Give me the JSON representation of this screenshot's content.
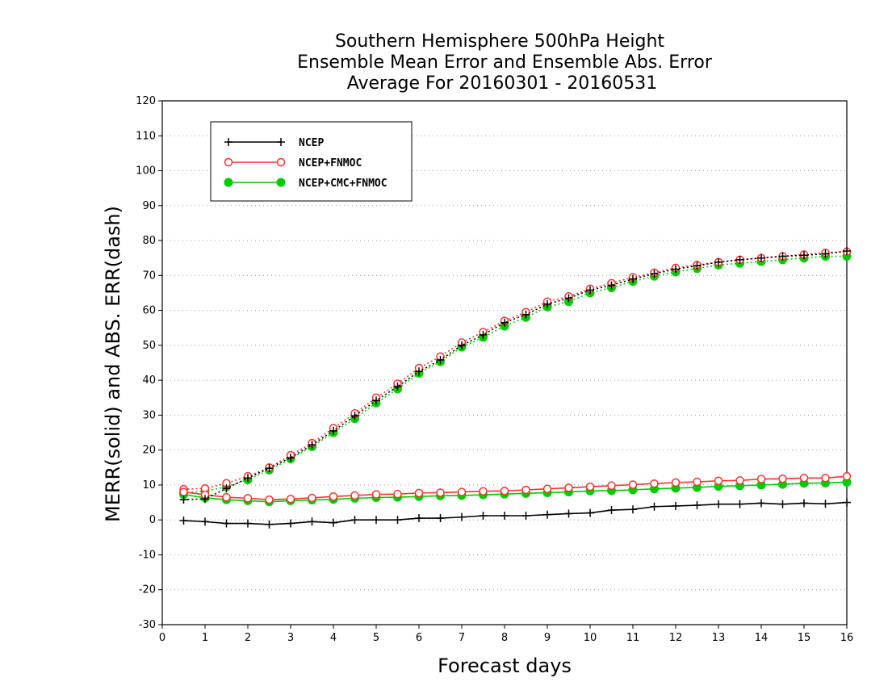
{
  "chart_data": {
    "type": "line",
    "title": [
      "Southern Hemisphere 500hPa Height",
      "Ensemble Mean Error and Ensemble Abs. Error",
      "Average For 20160301 - 20160531"
    ],
    "xlabel": "Forecast days",
    "ylabel": "MERR(solid) and ABS. ERR(dash)",
    "xlim": [
      0,
      16
    ],
    "ylim": [
      -30,
      120
    ],
    "x_ticks": [
      0,
      1,
      2,
      3,
      4,
      5,
      6,
      7,
      8,
      9,
      10,
      11,
      12,
      13,
      14,
      15,
      16
    ],
    "y_ticks": [
      -30,
      -20,
      -10,
      0,
      10,
      20,
      30,
      40,
      50,
      60,
      70,
      80,
      90,
      100,
      110,
      120
    ],
    "grid": "horizontal dotted",
    "legend_position": "top-left",
    "x": [
      0.5,
      1,
      1.5,
      2,
      2.5,
      3,
      3.5,
      4,
      4.5,
      5,
      5.5,
      6,
      6.5,
      7,
      7.5,
      8,
      8.5,
      9,
      9.5,
      10,
      10.5,
      11,
      11.5,
      12,
      12.5,
      13,
      13.5,
      14,
      14.5,
      15,
      15.5,
      16
    ],
    "series": [
      {
        "name": "NCEP",
        "color": "#000000",
        "marker": "plus",
        "merr": [
          -0.2,
          -0.5,
          -1.0,
          -1.0,
          -1.3,
          -1.0,
          -0.5,
          -0.8,
          0.0,
          0.0,
          0.0,
          0.5,
          0.5,
          0.8,
          1.2,
          1.2,
          1.2,
          1.5,
          1.8,
          2.0,
          2.8,
          3.0,
          3.8,
          4.0,
          4.2,
          4.5,
          4.5,
          4.8,
          4.5,
          4.8,
          4.6,
          5.0
        ],
        "abs_err": [
          5.8,
          6.0,
          9.0,
          12.0,
          14.8,
          17.8,
          21.5,
          25.5,
          29.8,
          34.2,
          38.2,
          42.5,
          45.8,
          50.0,
          53.0,
          56.5,
          58.8,
          61.8,
          63.5,
          65.8,
          67.2,
          69.0,
          70.5,
          71.8,
          72.8,
          73.8,
          74.5,
          75.0,
          75.5,
          75.8,
          76.2,
          77.0
        ]
      },
      {
        "name": "NCEP+FNMOC",
        "color": "#ff3030",
        "marker": "open-circle",
        "merr": [
          8.0,
          7.2,
          6.5,
          6.2,
          5.8,
          6.0,
          6.3,
          6.7,
          7.0,
          7.3,
          7.4,
          7.7,
          7.8,
          8.0,
          8.2,
          8.3,
          8.6,
          8.9,
          9.2,
          9.5,
          9.8,
          10.1,
          10.4,
          10.7,
          10.9,
          11.2,
          11.3,
          11.7,
          11.8,
          12.0,
          12.0,
          12.5
        ],
        "abs_err": [
          8.8,
          9.0,
          10.5,
          12.5,
          15.0,
          18.5,
          22.0,
          26.3,
          30.5,
          35.0,
          39.0,
          43.5,
          46.8,
          50.8,
          53.8,
          57.0,
          59.5,
          62.5,
          64.0,
          66.2,
          67.8,
          69.5,
          70.8,
          72.2,
          73.0,
          73.8,
          74.5,
          75.0,
          75.5,
          76.0,
          76.5,
          76.8
        ]
      },
      {
        "name": "NCEP+CMC+FNMOC",
        "color": "#00cc00",
        "marker": "filled-circle",
        "merr": [
          7.3,
          6.3,
          5.8,
          5.5,
          5.2,
          5.5,
          5.7,
          5.9,
          6.2,
          6.4,
          6.5,
          6.7,
          6.9,
          7.0,
          7.2,
          7.4,
          7.6,
          7.8,
          8.0,
          8.3,
          8.4,
          8.6,
          8.9,
          9.1,
          9.3,
          9.6,
          9.8,
          10.0,
          10.2,
          10.5,
          10.6,
          10.8
        ],
        "abs_err": [
          7.8,
          8.2,
          9.5,
          11.5,
          14.3,
          17.5,
          21.0,
          25.0,
          29.0,
          33.5,
          37.5,
          42.0,
          45.3,
          49.5,
          52.3,
          55.5,
          58.0,
          61.0,
          62.5,
          65.0,
          66.5,
          68.3,
          69.8,
          71.0,
          72.0,
          73.0,
          73.5,
          74.0,
          74.5,
          75.0,
          75.5,
          75.5
        ]
      }
    ]
  }
}
